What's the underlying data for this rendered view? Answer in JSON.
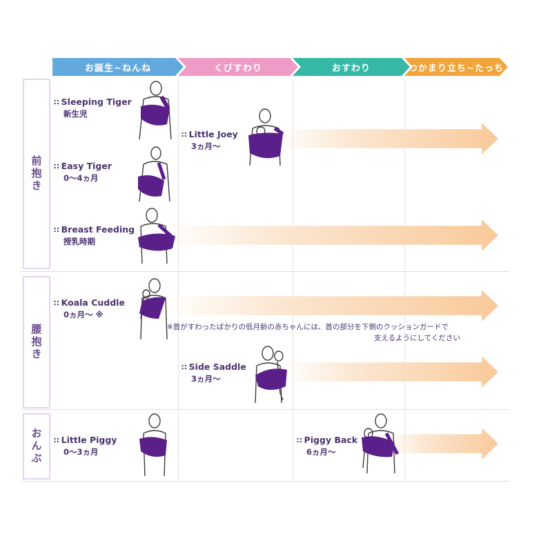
{
  "stages": [
    {
      "label": "お誕生~ねんね",
      "color": "#62a9dd"
    },
    {
      "label": "くびすわり",
      "color": "#ee9cc6"
    },
    {
      "label": "おすわり",
      "color": "#35b9a6"
    },
    {
      "label": "つかまり立ち~たっち",
      "color": "#f2a43c"
    }
  ],
  "categories": [
    "前抱き",
    "腰抱き",
    "おんぶ"
  ],
  "positions": {
    "sleeping_tiger": {
      "name": "Sleeping Tiger",
      "age": "新生児"
    },
    "easy_tiger": {
      "name": "Easy Tiger",
      "age": "0～4ヵ月"
    },
    "breast_feeding": {
      "name": "Breast Feeding",
      "age": "授乳時期"
    },
    "little_joey": {
      "name": "Little Joey",
      "age": "3ヵ月～"
    },
    "koala_cuddle": {
      "name": "Koala Cuddle",
      "age": "0ヵ月～ ※"
    },
    "side_saddle": {
      "name": "Side Saddle",
      "age": "3ヵ月～"
    },
    "little_piggy": {
      "name": "Little Piggy",
      "age": "0～3ヵ月"
    },
    "piggy_back": {
      "name": "Piggy Back",
      "age": "6ヵ月～"
    }
  },
  "note": {
    "line1": "※首がすわったばかりの低月齢の赤ちゃんには、首の部分を下側のクッションガードで",
    "line2": "支えるようにしてください"
  },
  "colors": {
    "sling": "#5b1f8a",
    "arrow": "#f9c99a",
    "category_border": "#e7d3f0"
  }
}
